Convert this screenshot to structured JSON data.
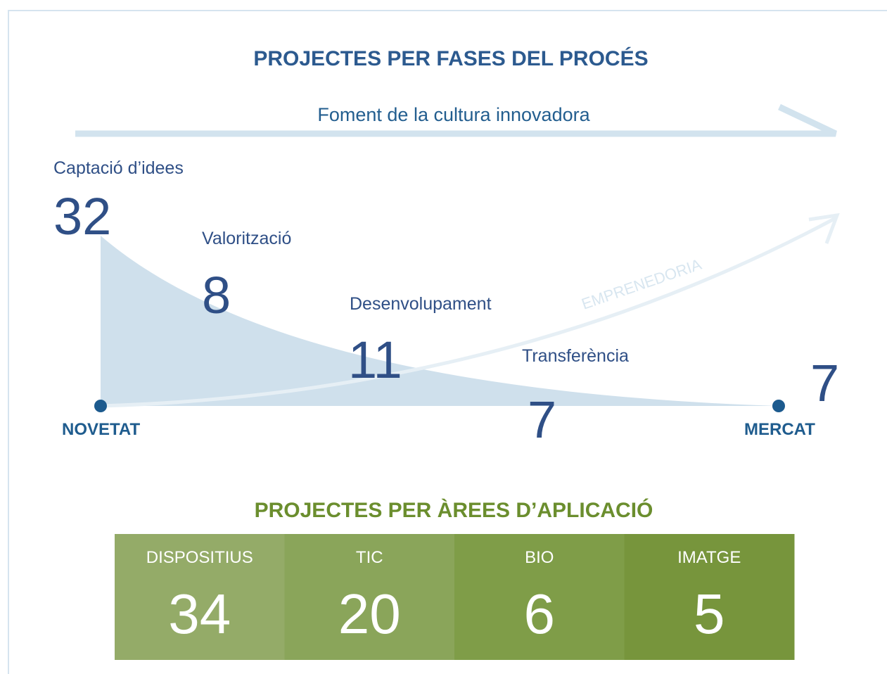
{
  "phases": {
    "title": "PROJECTES PER FASES DEL PROCÉS",
    "top_arrow": "Foment de la cultura innovadora",
    "curve_label": "EMPRENEDORIA",
    "start": "NOVETAT",
    "end": "MERCAT",
    "items": [
      {
        "label": "Captació d’idees",
        "value": 32
      },
      {
        "label": "Valorització",
        "value": 8
      },
      {
        "label": "Desenvolupament",
        "value": 11
      },
      {
        "label": "Transferència",
        "value": 7
      }
    ],
    "market_value": 7
  },
  "areas": {
    "title": "PROJECTES PER ÀREES D’APLICACIÓ",
    "items": [
      {
        "label": "DISPOSITIUS",
        "value": 34
      },
      {
        "label": "TIC",
        "value": 20
      },
      {
        "label": "BIO",
        "value": 6
      },
      {
        "label": "IMATGE",
        "value": 5
      }
    ]
  }
}
